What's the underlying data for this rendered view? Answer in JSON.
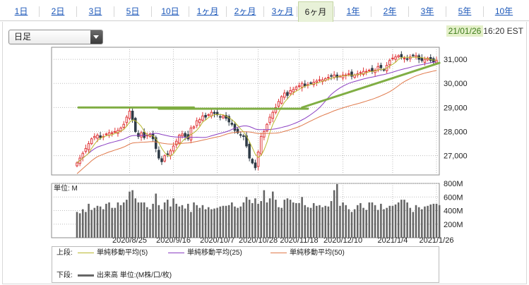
{
  "tabs": [
    {
      "label": "1日",
      "active": false
    },
    {
      "label": "2日",
      "active": false
    },
    {
      "label": "3日",
      "active": false
    },
    {
      "label": "5日",
      "active": false
    },
    {
      "label": "10日",
      "active": false
    },
    {
      "label": "1ヶ月",
      "active": false
    },
    {
      "label": "2ヶ月",
      "active": false
    },
    {
      "label": "3ヶ月",
      "active": false
    },
    {
      "label": "6ヶ月",
      "active": true
    },
    {
      "label": "1年",
      "active": false
    },
    {
      "label": "2年",
      "active": false
    },
    {
      "label": "3年",
      "active": false
    },
    {
      "label": "5年",
      "active": false
    },
    {
      "label": "10年",
      "active": false
    }
  ],
  "period_select": {
    "value": "日足"
  },
  "timestamp": {
    "date": "21/01/26",
    "time": "16:20 EST"
  },
  "colors": {
    "up": "#e0383a",
    "down": "#2f3b46",
    "ma5": "#b9b82e",
    "ma25": "#8a3ec2",
    "ma50": "#e07a4c",
    "trend": "#7aaa3a",
    "volume": "#666666"
  },
  "legend": {
    "upper_label": "上段:",
    "ma5_label": "単純移動平均(5)",
    "ma25_label": "単純移動平均(25)",
    "ma50_label": "単純移動平均(50)",
    "lower_label": "下段:",
    "volume_label": "出来高 単位:(M株/口/枚)"
  },
  "chart_data": [
    {
      "type": "candlestick",
      "title": "",
      "ylim": [
        26200,
        31500
      ],
      "y_ticks": [
        "31,000",
        "30,000",
        "29,000",
        "28,000",
        "27,000"
      ],
      "y_tick_values": [
        31000,
        30000,
        29000,
        28000,
        27000
      ],
      "x_tick_labels": [
        "2020/8/25",
        "2020/9/16",
        "2020/10/7",
        "2020/10/28",
        "2020/11/18",
        "2020/12/10",
        "2021/1/4",
        "2021/1/26"
      ],
      "x_tick_index": [
        18,
        33,
        48,
        62,
        76,
        91,
        108,
        123
      ],
      "closes": [
        26700,
        26900,
        27100,
        27300,
        27500,
        27700,
        27800,
        27850,
        27750,
        27800,
        27900,
        27950,
        27950,
        28000,
        28050,
        28150,
        28300,
        28600,
        28850,
        28500,
        28000,
        27800,
        27950,
        27750,
        27850,
        27900,
        27700,
        27300,
        26900,
        26750,
        27000,
        27050,
        27200,
        27400,
        27600,
        27850,
        27900,
        27800,
        27700,
        28150,
        28200,
        28450,
        28500,
        28650,
        28600,
        28700,
        28800,
        28750,
        28700,
        28600,
        28650,
        28550,
        28400,
        28300,
        28050,
        27950,
        27850,
        27800,
        27400,
        26900,
        26700,
        26500,
        27150,
        27800,
        28000,
        28300,
        28600,
        28800,
        29000,
        29250,
        29450,
        29600,
        29500,
        29700,
        29750,
        29850,
        29900,
        30000,
        29900,
        29950,
        30000,
        30050,
        30100,
        30150,
        30150,
        30200,
        30250,
        30300,
        30350,
        30250,
        30300,
        30350,
        30350,
        30400,
        30300,
        30350,
        30400,
        30450,
        30500,
        30500,
        30550,
        30500,
        30550,
        30700,
        30650,
        30550,
        30750,
        30950,
        31050,
        31100,
        31150,
        31100,
        31050,
        31000,
        31100,
        31150,
        31150,
        31000,
        30950,
        31000,
        31050,
        30950,
        30900,
        30950
      ],
      "trend_lines": [
        {
          "from": [
            0.5,
            29000
          ],
          "to": [
            40,
            29000
          ],
          "kind": "horizontal"
        },
        {
          "from": [
            28,
            28950
          ],
          "to": [
            79,
            28950
          ],
          "kind": "horizontal"
        },
        {
          "from": [
            77,
            29000
          ],
          "to": [
            124,
            30850
          ],
          "kind": "rising"
        }
      ],
      "ma_series": [
        "ma5",
        "ma25",
        "ma50"
      ]
    },
    {
      "type": "bar",
      "title": "",
      "unit_label": "単位: M",
      "ylim": [
        0,
        800
      ],
      "y_ticks": [
        "800M",
        "600M",
        "400M",
        "200M"
      ],
      "y_tick_values": [
        800,
        600,
        400,
        200
      ],
      "values": [
        380,
        360,
        420,
        380,
        500,
        410,
        440,
        470,
        460,
        420,
        500,
        520,
        440,
        440,
        520,
        480,
        520,
        560,
        680,
        700,
        580,
        520,
        520,
        520,
        450,
        420,
        500,
        650,
        480,
        420,
        520,
        560,
        460,
        580,
        500,
        460,
        480,
        430,
        500,
        380,
        520,
        480,
        440,
        480,
        420,
        450,
        420,
        430,
        440,
        460,
        470,
        470,
        480,
        520,
        460,
        440,
        460,
        520,
        600,
        560,
        510,
        580,
        500,
        540,
        700,
        520,
        580,
        680,
        560,
        450,
        440,
        560,
        580,
        560,
        520,
        510,
        510,
        600,
        480,
        450,
        440,
        510,
        470,
        480,
        450,
        470,
        460,
        540,
        700,
        790,
        470,
        520,
        480,
        420,
        380,
        420,
        480,
        510,
        440,
        410,
        520,
        520,
        480,
        410,
        500,
        420,
        440,
        470,
        470,
        490,
        520,
        560,
        560,
        520,
        440,
        380,
        480,
        450,
        420,
        460,
        470,
        490,
        500,
        500,
        480
      ]
    }
  ]
}
